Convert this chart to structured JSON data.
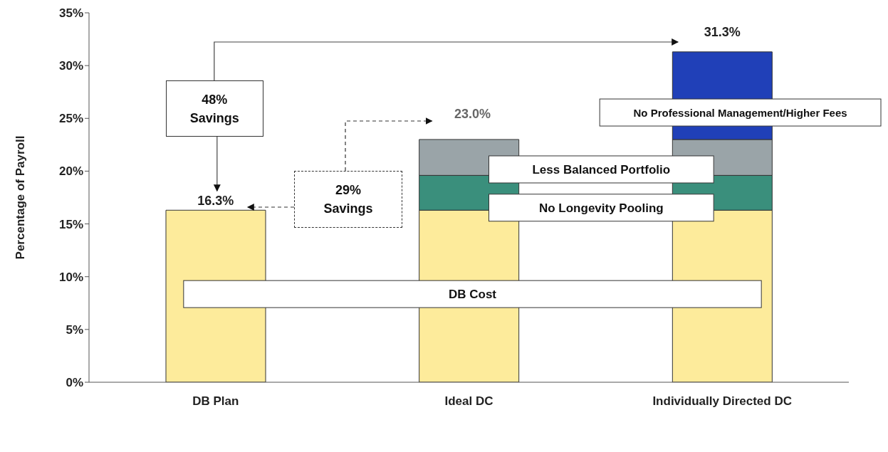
{
  "chart_data": {
    "type": "bar",
    "stacked": true,
    "categories": [
      "DB Plan",
      "Ideal DC",
      "Individually Directed DC"
    ],
    "series": [
      {
        "name": "DB Cost",
        "color": "#fdeb9b",
        "values": [
          16.3,
          16.3,
          16.3
        ]
      },
      {
        "name": "No Longevity Pooling",
        "color": "#3a8f7c",
        "values": [
          null,
          3.3,
          3.3
        ]
      },
      {
        "name": "Less Balanced Portfolio",
        "color": "#9aa4a8",
        "values": [
          null,
          3.4,
          3.4
        ]
      },
      {
        "name": "No Professional Management/Higher Fees",
        "color": "#2040b8",
        "values": [
          null,
          null,
          8.3
        ]
      }
    ],
    "ylabel": "Percentage of Payroll",
    "ylim": [
      0,
      35
    ],
    "yticks": [
      {
        "value": 0,
        "label": "0%"
      },
      {
        "value": 5,
        "label": "5%"
      },
      {
        "value": 10,
        "label": "10%"
      },
      {
        "value": 15,
        "label": "15%"
      },
      {
        "value": 20,
        "label": "20%"
      },
      {
        "value": 25,
        "label": "25%"
      },
      {
        "value": 30,
        "label": "30%"
      },
      {
        "value": 35,
        "label": "35%"
      }
    ],
    "totals": [
      "16.3%",
      "23.0%",
      "31.3%"
    ],
    "annotations": [
      "48% Savings",
      "29% Savings"
    ]
  }
}
